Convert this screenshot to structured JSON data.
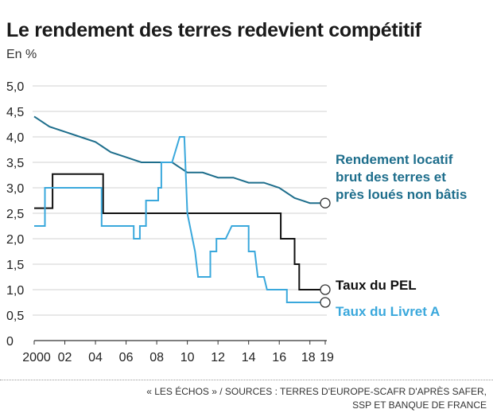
{
  "header": {
    "title": "Le rendement des terres redevient compétitif",
    "subtitle": "En %"
  },
  "footer": {
    "source_line1": "« LES ÉCHOS » / SOURCES : TERRES D'EUROPE-SCAFR D'APRÈS SAFER,",
    "source_line2": "SSP ET BANQUE DE FRANCE"
  },
  "colors": {
    "rendement": "#1e6e8c",
    "pel": "#111111",
    "livret": "#3aa8dc",
    "grid": "#d0d0d0",
    "axis": "#333333"
  },
  "chart_data": {
    "type": "line",
    "title": "Le rendement des terres redevient compétitif",
    "subtitle": "En %",
    "xlim": [
      2000,
      2019
    ],
    "ylim": [
      0,
      5
    ],
    "grid": "horizontal",
    "x_tick_labels": [
      {
        "x": 2000,
        "label": "2000"
      },
      {
        "x": 2002,
        "label": "02"
      },
      {
        "x": 2004,
        "label": "04"
      },
      {
        "x": 2006,
        "label": "06"
      },
      {
        "x": 2008,
        "label": "08"
      },
      {
        "x": 2010,
        "label": "10"
      },
      {
        "x": 2012,
        "label": "12"
      },
      {
        "x": 2014,
        "label": "14"
      },
      {
        "x": 2016,
        "label": "16"
      },
      {
        "x": 2018,
        "label": "18"
      },
      {
        "x": 2019,
        "label": "19"
      }
    ],
    "y_ticks": [
      {
        "y": 0,
        "label": "0"
      },
      {
        "y": 0.5,
        "label": "0,5"
      },
      {
        "y": 1,
        "label": "1,0"
      },
      {
        "y": 1.5,
        "label": "1,5"
      },
      {
        "y": 2,
        "label": "2,0"
      },
      {
        "y": 2.5,
        "label": "2,5"
      },
      {
        "y": 3,
        "label": "3,0"
      },
      {
        "y": 3.5,
        "label": "3,5"
      },
      {
        "y": 4,
        "label": "4,0"
      },
      {
        "y": 4.5,
        "label": "4,5"
      },
      {
        "y": 5,
        "label": "5,0"
      }
    ],
    "series": [
      {
        "name": "Rendement locatif brut des terres et prés loués non bâtis",
        "label_lines": [
          "Rendement locatif",
          "brut des terres et",
          "près loués non bâtis"
        ],
        "color_key": "rendement",
        "points": [
          [
            2000,
            4.4
          ],
          [
            2001,
            4.2
          ],
          [
            2002,
            4.1
          ],
          [
            2003,
            4.0
          ],
          [
            2004,
            3.9
          ],
          [
            2005,
            3.7
          ],
          [
            2006,
            3.6
          ],
          [
            2007,
            3.5
          ],
          [
            2008,
            3.5
          ],
          [
            2009,
            3.5
          ],
          [
            2010,
            3.3
          ],
          [
            2011,
            3.3
          ],
          [
            2012,
            3.2
          ],
          [
            2013,
            3.2
          ],
          [
            2014,
            3.1
          ],
          [
            2015,
            3.1
          ],
          [
            2016,
            3.0
          ],
          [
            2017,
            2.8
          ],
          [
            2018,
            2.7
          ],
          [
            2019,
            2.7
          ]
        ]
      },
      {
        "name": "Taux du PEL",
        "label_lines": [
          "Taux du PEL"
        ],
        "color_key": "pel",
        "points": [
          [
            2000,
            2.6
          ],
          [
            2001.2,
            2.6
          ],
          [
            2001.2,
            3.27
          ],
          [
            2002,
            3.27
          ],
          [
            2003,
            3.27
          ],
          [
            2004.5,
            3.27
          ],
          [
            2004.5,
            2.5
          ],
          [
            2006,
            2.5
          ],
          [
            2008,
            2.5
          ],
          [
            2010,
            2.5
          ],
          [
            2012,
            2.5
          ],
          [
            2014,
            2.5
          ],
          [
            2016.1,
            2.5
          ],
          [
            2016.1,
            2.0
          ],
          [
            2017,
            2.0
          ],
          [
            2017,
            1.5
          ],
          [
            2017.3,
            1.5
          ],
          [
            2017.3,
            1.0
          ],
          [
            2019,
            1.0
          ]
        ]
      },
      {
        "name": "Taux du Livret A",
        "label_lines": [
          "Taux du Livret A"
        ],
        "color_key": "livret",
        "points": [
          [
            2000,
            2.25
          ],
          [
            2000.7,
            2.25
          ],
          [
            2000.7,
            3.0
          ],
          [
            2002,
            3.0
          ],
          [
            2003,
            3.0
          ],
          [
            2004.4,
            3.0
          ],
          [
            2004.4,
            2.25
          ],
          [
            2006.5,
            2.25
          ],
          [
            2006.5,
            2.0
          ],
          [
            2006.9,
            2.0
          ],
          [
            2006.9,
            2.25
          ],
          [
            2007.3,
            2.25
          ],
          [
            2007.3,
            2.75
          ],
          [
            2008.1,
            2.75
          ],
          [
            2008.1,
            3.0
          ],
          [
            2008.3,
            3.0
          ],
          [
            2008.3,
            3.5
          ],
          [
            2009.0,
            3.5
          ],
          [
            2009.5,
            4.0
          ],
          [
            2009.8,
            4.0
          ],
          [
            2010.0,
            2.5
          ],
          [
            2010.5,
            1.75
          ],
          [
            2010.7,
            1.25
          ],
          [
            2011.5,
            1.25
          ],
          [
            2011.5,
            1.75
          ],
          [
            2011.9,
            1.75
          ],
          [
            2011.9,
            2.0
          ],
          [
            2012.5,
            2.0
          ],
          [
            2012.9,
            2.25
          ],
          [
            2014.0,
            2.25
          ],
          [
            2014.0,
            1.75
          ],
          [
            2014.4,
            1.75
          ],
          [
            2014.6,
            1.25
          ],
          [
            2015.0,
            1.25
          ],
          [
            2015.2,
            1.0
          ],
          [
            2016.5,
            1.0
          ],
          [
            2016.5,
            0.75
          ],
          [
            2019,
            0.75
          ]
        ]
      }
    ]
  }
}
